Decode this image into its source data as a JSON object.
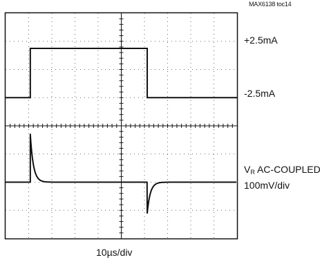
{
  "figure_ref": "MAX6138 toc14",
  "chart_data": {
    "type": "line",
    "title": "",
    "grid": true,
    "divisions": {
      "x": 10,
      "y": 8
    },
    "xlabel": "10µs/div",
    "time_per_div_us": 10,
    "xlim_us": [
      0,
      100
    ],
    "traces": [
      {
        "label": "+2.5mA",
        "low_label": "-2.5mA",
        "low_level_mA": -2.5,
        "high_level_mA": 2.5,
        "pulse_start_us": 10.7,
        "pulse_end_us": 61.2
      },
      {
        "label_main": "V",
        "label_sub": "R",
        "label_rest": " AC-COUPLED",
        "scale": "100mV/div",
        "scale_mV_per_div": 100,
        "coupling": "AC",
        "spike_at_rise_divs": 1.7,
        "spike_at_fall_divs": -1.1,
        "settling_time_us": 4
      }
    ]
  }
}
